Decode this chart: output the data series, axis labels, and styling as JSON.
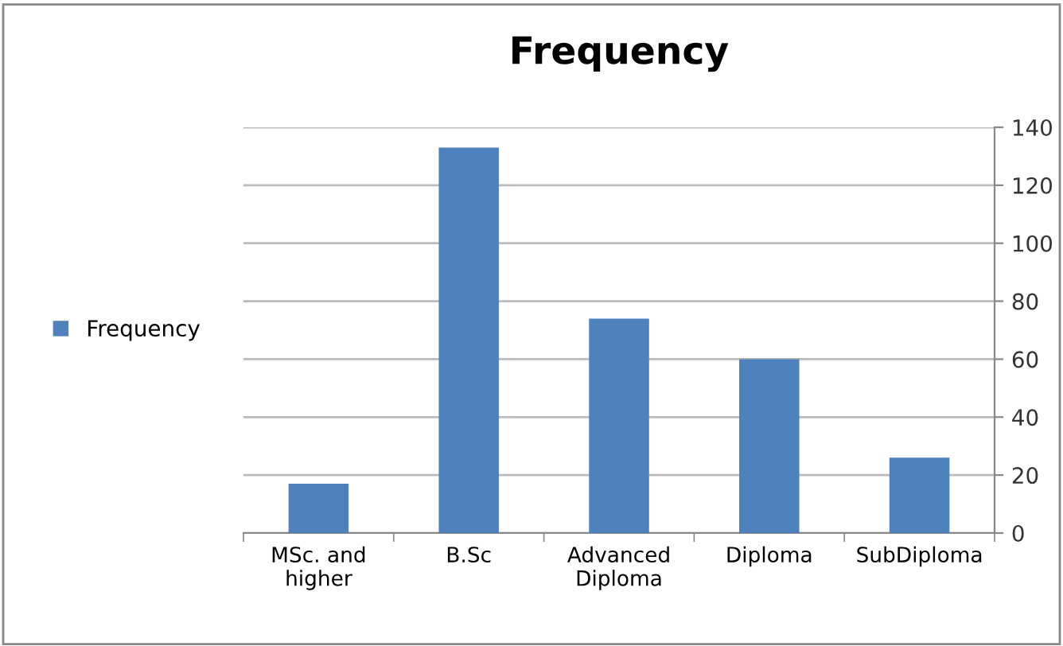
{
  "chart_data": {
    "type": "bar",
    "title": "Frequency",
    "categories": [
      "MSc. and\nhigher",
      "B.Sc",
      "Advanced\nDiploma",
      "Diploma",
      "SubDiploma"
    ],
    "series": [
      {
        "name": "Frequency",
        "color": "#4f81bd",
        "values": [
          17,
          133,
          74,
          60,
          26
        ]
      }
    ],
    "ylim": [
      0,
      140
    ],
    "yticks": [
      0,
      20,
      40,
      60,
      80,
      100,
      120,
      140
    ],
    "grid": "y",
    "legend": "left"
  }
}
